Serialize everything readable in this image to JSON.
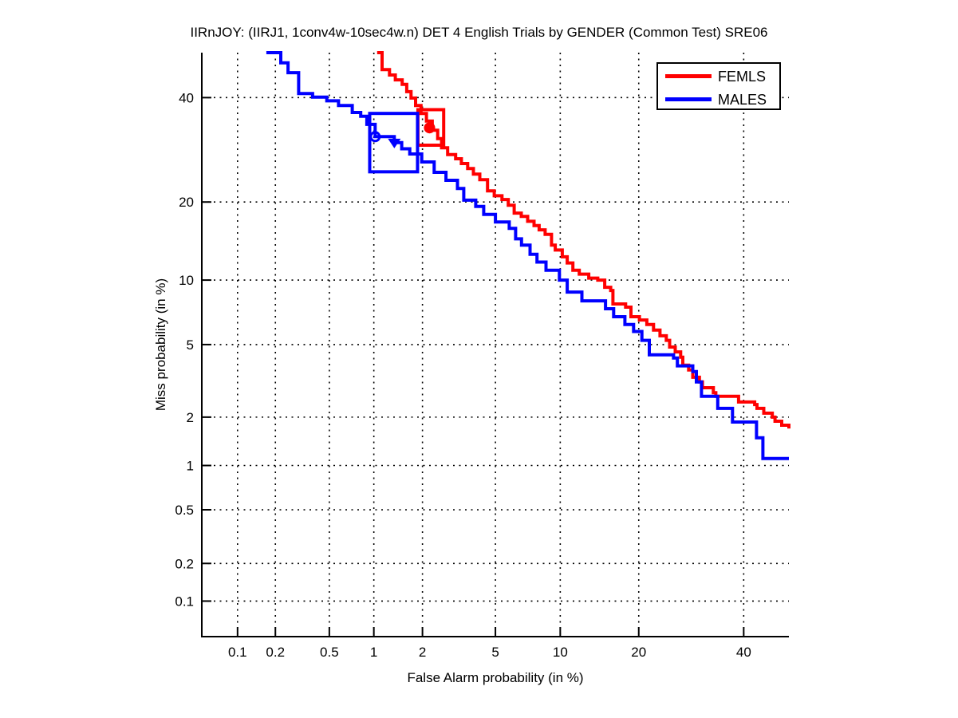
{
  "title": "IIRnJOY: (IIRJ1, 1conv4w-10sec4w.n) DET 4 English Trials by GENDER (Common Test) SRE06",
  "chart_data": {
    "type": "line",
    "variant": "DET-curve-step-plot-probit-scales",
    "title": "IIRnJOY: (IIRJ1, 1conv4w-10sec4w.n) DET 4 English Trials by GENDER (Common Test) SRE06",
    "xlabel": "False Alarm probability (in %)",
    "ylabel": "Miss probability (in %)",
    "xlim": [
      0.05,
      50
    ],
    "ylim": [
      0.05,
      50
    ],
    "x_ticks": [
      0.1,
      0.2,
      0.5,
      1,
      2,
      5,
      10,
      20,
      40
    ],
    "y_ticks": [
      0.1,
      0.2,
      0.5,
      1,
      2,
      5,
      10,
      20,
      40
    ],
    "grid": "dotted",
    "grid_color": "#000000",
    "legend_position": "top-right",
    "series": [
      {
        "name": "FEMLS",
        "color": "#ff0000",
        "points": [
          [
            1.05,
            50
          ],
          [
            1.13,
            46.2
          ],
          [
            1.26,
            45
          ],
          [
            1.37,
            43.9
          ],
          [
            1.51,
            42.9
          ],
          [
            1.61,
            41.3
          ],
          [
            1.71,
            39.9
          ],
          [
            1.82,
            38.3
          ],
          [
            1.96,
            36.6
          ],
          [
            2.11,
            35
          ],
          [
            2.28,
            33.1
          ],
          [
            2.45,
            31.4
          ],
          [
            2.58,
            29.6
          ],
          [
            2.79,
            28.3
          ],
          [
            3.09,
            27.5
          ],
          [
            3.32,
            26.6
          ],
          [
            3.59,
            25.7
          ],
          [
            3.85,
            24.7
          ],
          [
            4.16,
            23.7
          ],
          [
            4.56,
            21.8
          ],
          [
            4.93,
            21
          ],
          [
            5.39,
            20.4
          ],
          [
            5.79,
            19.5
          ],
          [
            6.18,
            18.3
          ],
          [
            6.68,
            17.8
          ],
          [
            7.16,
            17.1
          ],
          [
            7.66,
            16.5
          ],
          [
            8.08,
            15.9
          ],
          [
            8.59,
            15.3
          ],
          [
            9.17,
            13.9
          ],
          [
            9.52,
            13.3
          ],
          [
            10.2,
            12.5
          ],
          [
            10.7,
            11.8
          ],
          [
            11.3,
            11
          ],
          [
            12,
            10.6
          ],
          [
            13.1,
            10.2
          ],
          [
            14.2,
            10
          ],
          [
            15.1,
            9.31
          ],
          [
            15.9,
            9.01
          ],
          [
            16.2,
            7.84
          ],
          [
            18,
            7.58
          ],
          [
            18.8,
            6.84
          ],
          [
            20.1,
            6.6
          ],
          [
            21.3,
            6.28
          ],
          [
            22.4,
            5.9
          ],
          [
            23.5,
            5.53
          ],
          [
            24.6,
            5.25
          ],
          [
            25.2,
            4.86
          ],
          [
            26.2,
            4.59
          ],
          [
            27.2,
            4.31
          ],
          [
            27.6,
            3.91
          ],
          [
            28.7,
            3.69
          ],
          [
            29.5,
            3.37
          ],
          [
            30.8,
            3.18
          ],
          [
            31.4,
            2.95
          ],
          [
            33.6,
            2.77
          ],
          [
            34.1,
            2.64
          ],
          [
            38.9,
            2.45
          ],
          [
            42.4,
            2.37
          ],
          [
            42.9,
            2.25
          ],
          [
            44.4,
            2.11
          ],
          [
            46.3,
            2
          ],
          [
            46.9,
            1.89
          ],
          [
            48.4,
            1.79
          ],
          [
            50,
            1.71
          ]
        ],
        "markers": [
          {
            "type": "filled-circle",
            "fa": 2.2,
            "miss": 33.6
          }
        ],
        "box": {
          "fa_min": 1.88,
          "fa_max": 2.65,
          "miss_min": 30.1,
          "miss_max": 37.4
        }
      },
      {
        "name": "MALES",
        "color": "#0000ff",
        "points": [
          [
            0.17,
            50
          ],
          [
            0.22,
            47.7
          ],
          [
            0.25,
            45.5
          ],
          [
            0.3,
            40.9
          ],
          [
            0.38,
            40.1
          ],
          [
            0.48,
            39.3
          ],
          [
            0.58,
            38.3
          ],
          [
            0.72,
            36.8
          ],
          [
            0.82,
            36
          ],
          [
            0.9,
            34.3
          ],
          [
            1.02,
            31.8
          ],
          [
            1.35,
            30.6
          ],
          [
            1.5,
            29.4
          ],
          [
            1.68,
            28.4
          ],
          [
            1.98,
            26.9
          ],
          [
            2.34,
            25
          ],
          [
            2.73,
            23.6
          ],
          [
            3.16,
            22.2
          ],
          [
            3.42,
            20.3
          ],
          [
            3.96,
            19.3
          ],
          [
            4.36,
            18.1
          ],
          [
            5,
            17
          ],
          [
            5.85,
            16.1
          ],
          [
            6.28,
            14.7
          ],
          [
            6.7,
            13.9
          ],
          [
            7.34,
            12.8
          ],
          [
            7.9,
            11.9
          ],
          [
            8.67,
            11
          ],
          [
            9.92,
            10
          ],
          [
            10.7,
            8.87
          ],
          [
            12.3,
            8.1
          ],
          [
            15.2,
            7.45
          ],
          [
            16.3,
            6.84
          ],
          [
            17.9,
            6.28
          ],
          [
            19.2,
            5.81
          ],
          [
            20.5,
            5.25
          ],
          [
            21.7,
            4.43
          ],
          [
            25.9,
            4.27
          ],
          [
            26.6,
            3.88
          ],
          [
            29.5,
            3.62
          ],
          [
            30.2,
            3.18
          ],
          [
            31.2,
            2.64
          ],
          [
            34.5,
            2.25
          ],
          [
            37.6,
            1.87
          ],
          [
            42.8,
            1.5
          ],
          [
            44.2,
            1.11
          ],
          [
            50,
            1.11
          ]
        ],
        "markers": [
          {
            "type": "open-circle",
            "fa": 1.02,
            "miss": 31.8
          },
          {
            "type": "filled-triangle-down",
            "fa": 1.35,
            "miss": 30.6
          }
        ],
        "box": {
          "fa_min": 0.94,
          "fa_max": 1.87,
          "miss_min": 25.1,
          "miss_max": 36.6
        }
      }
    ]
  }
}
